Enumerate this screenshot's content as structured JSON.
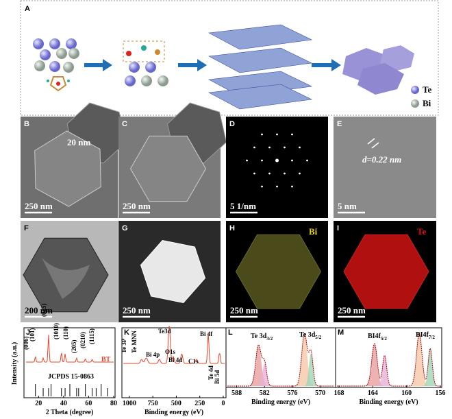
{
  "panel_a": {
    "label": "A",
    "legend": [
      "Te",
      "Bi"
    ]
  },
  "images": [
    {
      "label": "B",
      "scale": "250 nm",
      "annotation": "20 nm"
    },
    {
      "label": "C",
      "scale": "250 nm"
    },
    {
      "label": "D",
      "scale": "5 1/nm"
    },
    {
      "label": "E",
      "scale": "5 nm",
      "annotation": "d=0.22 nm"
    },
    {
      "label": "F",
      "scale": "200 nm"
    },
    {
      "label": "G",
      "scale": "250 nm"
    },
    {
      "label": "H",
      "scale": "250 nm",
      "element": "Bi"
    },
    {
      "label": "I",
      "scale": "250 nm",
      "element": "Te"
    }
  ],
  "xrd": {
    "label": "J",
    "ylabel": "Intensity (a.u.)",
    "xlabel": "2 Theta (degree)",
    "xticks": [
      20,
      40,
      60,
      80
    ],
    "peaks": [
      "(006)",
      "(101)",
      "(015)",
      "(1010)",
      "(110)",
      "(205)",
      "(0210)",
      "(1115)"
    ],
    "series": "BT",
    "reference": "JCPDS 15-0863"
  },
  "survey": {
    "label": "K",
    "xlabel": "Binding energy (eV)",
    "xticks": [
      1000,
      750,
      500,
      250,
      0
    ],
    "peaks": [
      "Te 3P",
      "Te MNN",
      "Bi 4p",
      "Te3d",
      "O1s",
      "Bi 4d",
      "C1s",
      "Bi 4f",
      "Te 4d",
      "Bi 5d"
    ]
  },
  "te3d": {
    "label": "L",
    "xlabel": "Binding energy (eV)",
    "xticks": [
      588,
      582,
      576,
      570
    ],
    "peaks": [
      {
        "main": "Te 3d",
        "sub": "3/2"
      },
      {
        "main": "Te 3d",
        "sub": "5/2"
      }
    ]
  },
  "bi4f": {
    "label": "M",
    "xlabel": "Binding energy (eV)",
    "xticks": [
      168,
      164,
      160,
      156
    ],
    "peaks": [
      {
        "main": "BI4f",
        "sub": "5/2"
      },
      {
        "main": "BI4f",
        "sub": "7/2"
      }
    ]
  }
}
